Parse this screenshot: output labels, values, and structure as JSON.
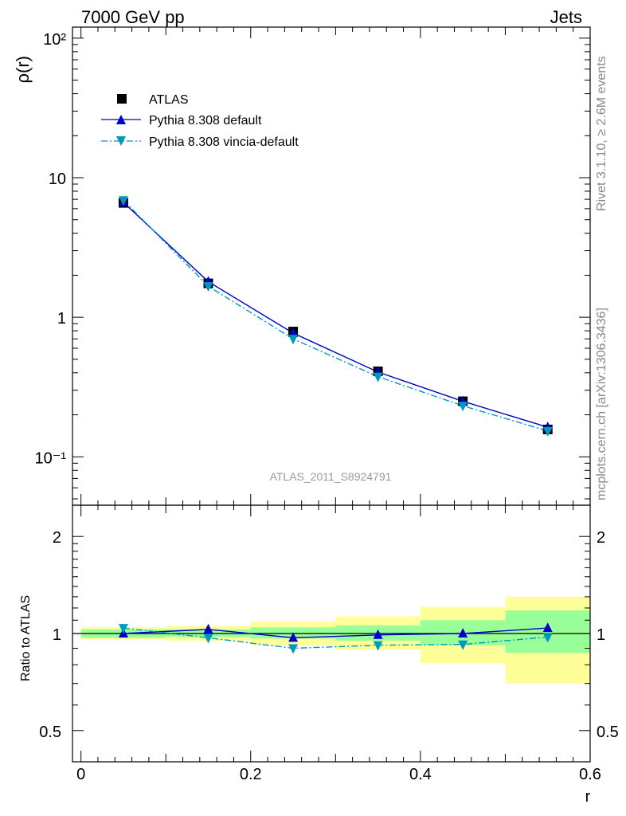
{
  "header": {
    "left": "7000 GeV pp",
    "right": "Jets"
  },
  "side_texts": {
    "rivet": "Rivet 3.1.10, ≥ 2.6M events",
    "mcplots": "mcplots.cern.ch [arXiv:1306.3436]"
  },
  "analysis_label": "ATLAS_2011_S8924791",
  "chart_data": [
    {
      "panel": "main",
      "type": "line",
      "ylabel": "ρ(r)",
      "yscale": "log",
      "ylim": [
        0.045,
        120
      ],
      "xlim": [
        -0.01,
        0.6
      ],
      "ytick_labels": [
        "10⁻¹",
        "1",
        "10",
        "10²"
      ],
      "legend_position": "top-left",
      "x": [
        0.05,
        0.15,
        0.25,
        0.35,
        0.45,
        0.55
      ],
      "series": [
        {
          "name": "ATLAS",
          "color": "#000000",
          "marker": "square",
          "values": [
            6.6,
            1.75,
            0.79,
            0.41,
            0.25,
            0.157
          ]
        },
        {
          "name": "Pythia 8.308 default",
          "color": "#0000cc",
          "marker": "triangle-up",
          "line": "solid",
          "values": [
            6.65,
            1.8,
            0.77,
            0.405,
            0.25,
            0.163
          ]
        },
        {
          "name": "Pythia 8.308 vincia-default",
          "color": "#0099bb",
          "marker": "triangle-down",
          "line": "dashdot",
          "values": [
            6.9,
            1.67,
            0.7,
            0.375,
            0.232,
            0.153
          ]
        }
      ]
    },
    {
      "panel": "ratio",
      "type": "line",
      "ylabel": "Ratio to ATLAS",
      "xlabel": "r",
      "yscale": "log",
      "ylim": [
        0.4,
        2.5
      ],
      "xlim": [
        -0.01,
        0.6
      ],
      "ytick_labels": [
        "0.5",
        "1",
        "2"
      ],
      "xtick_labels": [
        "0",
        "0.2",
        "0.4",
        "0.6"
      ],
      "bins": [
        [
          0.0,
          0.1
        ],
        [
          0.1,
          0.2
        ],
        [
          0.2,
          0.3
        ],
        [
          0.3,
          0.4
        ],
        [
          0.4,
          0.5
        ],
        [
          0.5,
          0.6
        ]
      ],
      "stat_band": [
        [
          0.97,
          1.03
        ],
        [
          0.975,
          1.03
        ],
        [
          0.965,
          1.045
        ],
        [
          0.95,
          1.06
        ],
        [
          0.92,
          1.1
        ],
        [
          0.87,
          1.18
        ]
      ],
      "total_band": [
        [
          0.96,
          1.045
        ],
        [
          0.95,
          1.055
        ],
        [
          0.92,
          1.09
        ],
        [
          0.89,
          1.13
        ],
        [
          0.81,
          1.21
        ],
        [
          0.7,
          1.3
        ]
      ],
      "x": [
        0.05,
        0.15,
        0.25,
        0.35,
        0.45,
        0.55
      ],
      "series": [
        {
          "name": "Pythia 8.308 default",
          "color": "#0000cc",
          "values": [
            1.0,
            1.03,
            0.97,
            0.99,
            1.0,
            1.04
          ]
        },
        {
          "name": "Pythia 8.308 vincia-default",
          "color": "#0099bb",
          "values": [
            1.04,
            0.97,
            0.9,
            0.92,
            0.925,
            0.975
          ]
        }
      ]
    }
  ]
}
